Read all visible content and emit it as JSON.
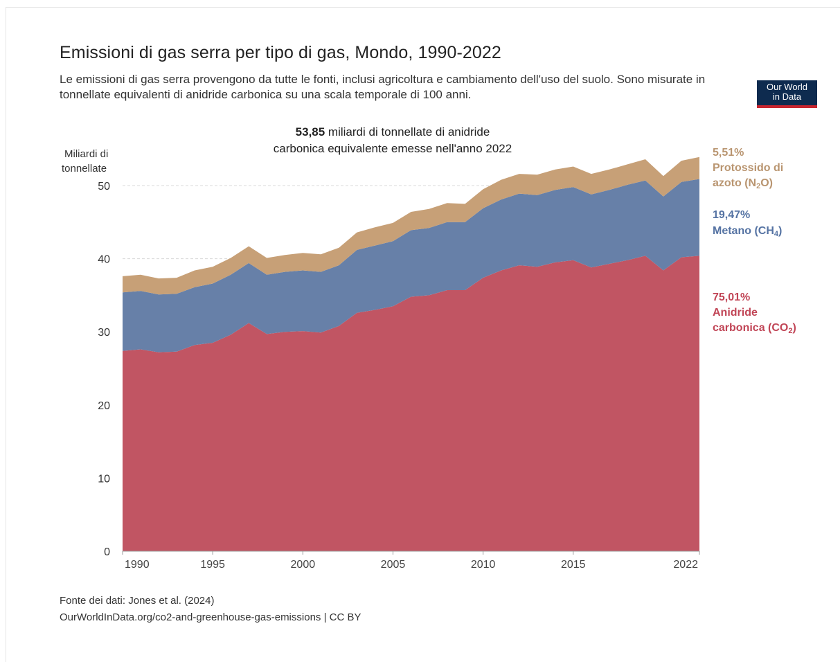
{
  "title": "Emissioni di gas serra per tipo di gas, Mondo, 1990-2022",
  "subtitle": "Le emissioni di gas serra provengono da tutte le fonti, inclusi agricoltura e cambiamento dell'uso del suolo. Sono misurate in tonnellate equivalenti di anidride carbonica su una scala temporale di 100 anni.",
  "logo": {
    "line1": "Our World",
    "line2": "in Data",
    "bg": "#0e2b4f",
    "accent": "#c8252f"
  },
  "footer": {
    "source": "Fonte dei dati: Jones et al. (2024)",
    "url": "OurWorldInData.org/co2-and-greenhouse-gas-emissions | CC BY"
  },
  "chart_data": {
    "type": "area",
    "stacked": true,
    "ylabel_line1": "Miliardi di",
    "ylabel_line2": "tonnellate",
    "ylim": [
      0,
      55
    ],
    "yticks": [
      0,
      10,
      20,
      30,
      40,
      50
    ],
    "xticks": [
      1990,
      1995,
      2000,
      2005,
      2010,
      2015,
      2022
    ],
    "grid": "horizontal-dashed",
    "annotation": {
      "value": "53,85",
      "line1_rest": " miliardi di tonnellate di anidride",
      "line2": "carbonica equivalente emesse nell'anno 2022"
    },
    "x": [
      1990,
      1991,
      1992,
      1993,
      1994,
      1995,
      1996,
      1997,
      1998,
      1999,
      2000,
      2001,
      2002,
      2003,
      2004,
      2005,
      2006,
      2007,
      2008,
      2009,
      2010,
      2011,
      2012,
      2013,
      2014,
      2015,
      2016,
      2017,
      2018,
      2019,
      2020,
      2021,
      2022
    ],
    "series": [
      {
        "key": "co2",
        "percent": "75,01%",
        "name_line1": "Anidride",
        "name_line2": "carbonica (CO",
        "sub": "2",
        "name_end": ")",
        "color": "#c15563",
        "label_color": "#c14556",
        "values": [
          27.4,
          27.6,
          27.2,
          27.3,
          28.2,
          28.5,
          29.6,
          31.2,
          29.7,
          30.0,
          30.1,
          29.9,
          30.8,
          32.6,
          33.0,
          33.5,
          34.8,
          35.0,
          35.7,
          35.7,
          37.4,
          38.4,
          39.1,
          38.9,
          39.5,
          39.8,
          38.8,
          39.3,
          39.8,
          40.4,
          38.4,
          40.2,
          40.4
        ]
      },
      {
        "key": "ch4",
        "percent": "19,47%",
        "name_line1": "Metano (CH",
        "sub": "4",
        "name_end": ")",
        "color": "#6780a8",
        "label_color": "#5573a3",
        "values": [
          8.0,
          8.0,
          7.9,
          7.9,
          7.9,
          8.1,
          8.2,
          8.2,
          8.1,
          8.2,
          8.3,
          8.3,
          8.3,
          8.6,
          8.8,
          8.9,
          9.1,
          9.2,
          9.3,
          9.3,
          9.5,
          9.7,
          9.8,
          9.8,
          9.9,
          10.0,
          10.0,
          10.1,
          10.3,
          10.3,
          10.1,
          10.3,
          10.5
        ]
      },
      {
        "key": "n2o",
        "percent": "5,51%",
        "name_line1": "Protossido di",
        "name_line2": "azoto (N",
        "sub": "2",
        "name_end": "O)",
        "color": "#c7a077",
        "label_color": "#b99570",
        "values": [
          2.2,
          2.2,
          2.2,
          2.2,
          2.3,
          2.3,
          2.3,
          2.3,
          2.3,
          2.3,
          2.4,
          2.4,
          2.4,
          2.4,
          2.5,
          2.5,
          2.5,
          2.6,
          2.6,
          2.5,
          2.6,
          2.7,
          2.7,
          2.8,
          2.8,
          2.8,
          2.8,
          2.8,
          2.8,
          2.9,
          2.8,
          2.9,
          3.0
        ]
      }
    ]
  }
}
